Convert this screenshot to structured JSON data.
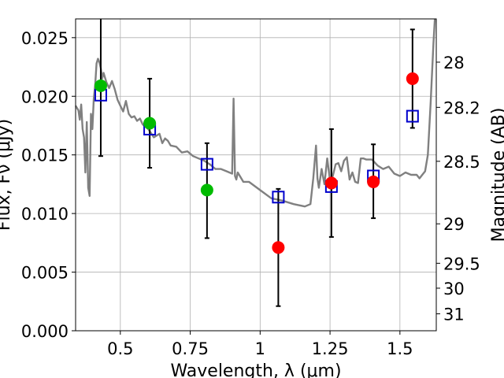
{
  "chart_data": {
    "type": "scatter",
    "xlabel": "Wavelength, λ (μm)",
    "ylabel": "Flux, Fν (μJy)",
    "y2label": "Magnitude (AB)",
    "xlim": [
      0.34,
      1.63
    ],
    "ylim": [
      0.0,
      0.0266
    ],
    "grid": true,
    "x_ticks": [
      {
        "value": 0.5,
        "label": "0.5"
      },
      {
        "value": 0.75,
        "label": "0.75"
      },
      {
        "value": 1.0,
        "label": "1"
      },
      {
        "value": 1.25,
        "label": "1.25"
      },
      {
        "value": 1.5,
        "label": "1.5"
      }
    ],
    "y_ticks": [
      {
        "value": 0.0,
        "label": "0.000"
      },
      {
        "value": 0.005,
        "label": "0.005"
      },
      {
        "value": 0.01,
        "label": "0.010"
      },
      {
        "value": 0.015,
        "label": "0.015"
      },
      {
        "value": 0.02,
        "label": "0.020"
      },
      {
        "value": 0.025,
        "label": "0.025"
      }
    ],
    "y2_ticks": [
      {
        "mag": 28,
        "label": "28"
      },
      {
        "mag": 28.2,
        "label": "28.2"
      },
      {
        "mag": 28.5,
        "label": "28.5"
      },
      {
        "mag": 29,
        "label": "29"
      },
      {
        "mag": 29.5,
        "label": "29.5"
      },
      {
        "mag": 30,
        "label": "30"
      },
      {
        "mag": 31,
        "label": "31"
      }
    ],
    "model_spectrum": {
      "color": "#808080",
      "x": [
        0.34,
        0.35,
        0.355,
        0.36,
        0.365,
        0.37,
        0.375,
        0.38,
        0.385,
        0.39,
        0.395,
        0.4,
        0.405,
        0.41,
        0.415,
        0.42,
        0.425,
        0.43,
        0.435,
        0.44,
        0.45,
        0.46,
        0.47,
        0.48,
        0.49,
        0.5,
        0.51,
        0.52,
        0.53,
        0.54,
        0.55,
        0.56,
        0.57,
        0.58,
        0.6,
        0.62,
        0.64,
        0.65,
        0.66,
        0.67,
        0.68,
        0.7,
        0.72,
        0.74,
        0.76,
        0.78,
        0.8,
        0.82,
        0.84,
        0.86,
        0.88,
        0.9,
        0.905,
        0.91,
        0.915,
        0.92,
        0.94,
        0.96,
        1.0,
        1.04,
        1.08,
        1.12,
        1.16,
        1.18,
        1.19,
        1.2,
        1.205,
        1.21,
        1.22,
        1.23,
        1.24,
        1.25,
        1.26,
        1.27,
        1.28,
        1.29,
        1.3,
        1.31,
        1.32,
        1.33,
        1.34,
        1.35,
        1.36,
        1.37,
        1.38,
        1.4,
        1.42,
        1.44,
        1.46,
        1.48,
        1.5,
        1.52,
        1.54,
        1.56,
        1.57,
        1.58,
        1.59,
        1.6,
        1.61,
        1.62,
        1.625
      ],
      "y": [
        0.0192,
        0.0188,
        0.018,
        0.0193,
        0.0172,
        0.0165,
        0.0135,
        0.0178,
        0.0122,
        0.0115,
        0.0185,
        0.0172,
        0.0198,
        0.021,
        0.0228,
        0.0232,
        0.0229,
        0.0224,
        0.0215,
        0.022,
        0.0212,
        0.0207,
        0.0213,
        0.0206,
        0.0197,
        0.0192,
        0.0187,
        0.0196,
        0.0185,
        0.0182,
        0.0183,
        0.0179,
        0.0181,
        0.0176,
        0.0172,
        0.0165,
        0.0168,
        0.016,
        0.0164,
        0.0162,
        0.0158,
        0.0157,
        0.0152,
        0.0153,
        0.0149,
        0.0147,
        0.0145,
        0.0142,
        0.0138,
        0.0138,
        0.0136,
        0.0134,
        0.0198,
        0.0132,
        0.0129,
        0.0135,
        0.0127,
        0.0127,
        0.012,
        0.0113,
        0.0111,
        0.0108,
        0.0106,
        0.0108,
        0.013,
        0.0158,
        0.013,
        0.0122,
        0.0138,
        0.0125,
        0.0147,
        0.0128,
        0.0132,
        0.0142,
        0.0143,
        0.0136,
        0.0145,
        0.0148,
        0.0129,
        0.0135,
        0.0127,
        0.0126,
        0.0147,
        0.0147,
        0.0146,
        0.0146,
        0.0141,
        0.0138,
        0.014,
        0.0134,
        0.0132,
        0.0135,
        0.0133,
        0.0133,
        0.013,
        0.0133,
        0.0136,
        0.015,
        0.0195,
        0.0245,
        0.0266
      ]
    },
    "series": [
      {
        "marker": "open-square",
        "color": "#0000cc",
        "points": [
          {
            "x": 0.43,
            "y": 0.0201
          },
          {
            "x": 0.605,
            "y": 0.0172
          },
          {
            "x": 0.81,
            "y": 0.0142
          },
          {
            "x": 1.065,
            "y": 0.0114
          },
          {
            "x": 1.255,
            "y": 0.0123
          },
          {
            "x": 1.405,
            "y": 0.0132
          },
          {
            "x": 1.545,
            "y": 0.0183
          }
        ]
      },
      {
        "marker": "filled-circle",
        "color": "#00bb00",
        "points": [
          {
            "x": 0.43,
            "y": 0.0209,
            "err": [
              0.0149,
              0.0266
            ]
          },
          {
            "x": 0.605,
            "y": 0.0177,
            "err": [
              0.0139,
              0.0215
            ]
          },
          {
            "x": 0.81,
            "y": 0.012,
            "err": [
              0.0079,
              0.016
            ]
          }
        ]
      },
      {
        "marker": "filled-circle",
        "color": "#ff0000",
        "points": [
          {
            "x": 1.065,
            "y": 0.0071,
            "err": [
              0.0021,
              0.0121
            ]
          },
          {
            "x": 1.255,
            "y": 0.0126,
            "err": [
              0.008,
              0.0172
            ]
          },
          {
            "x": 1.405,
            "y": 0.0127,
            "err": [
              0.0096,
              0.0159
            ]
          },
          {
            "x": 1.545,
            "y": 0.0215,
            "err": [
              0.0173,
              0.0257
            ]
          }
        ]
      }
    ]
  }
}
